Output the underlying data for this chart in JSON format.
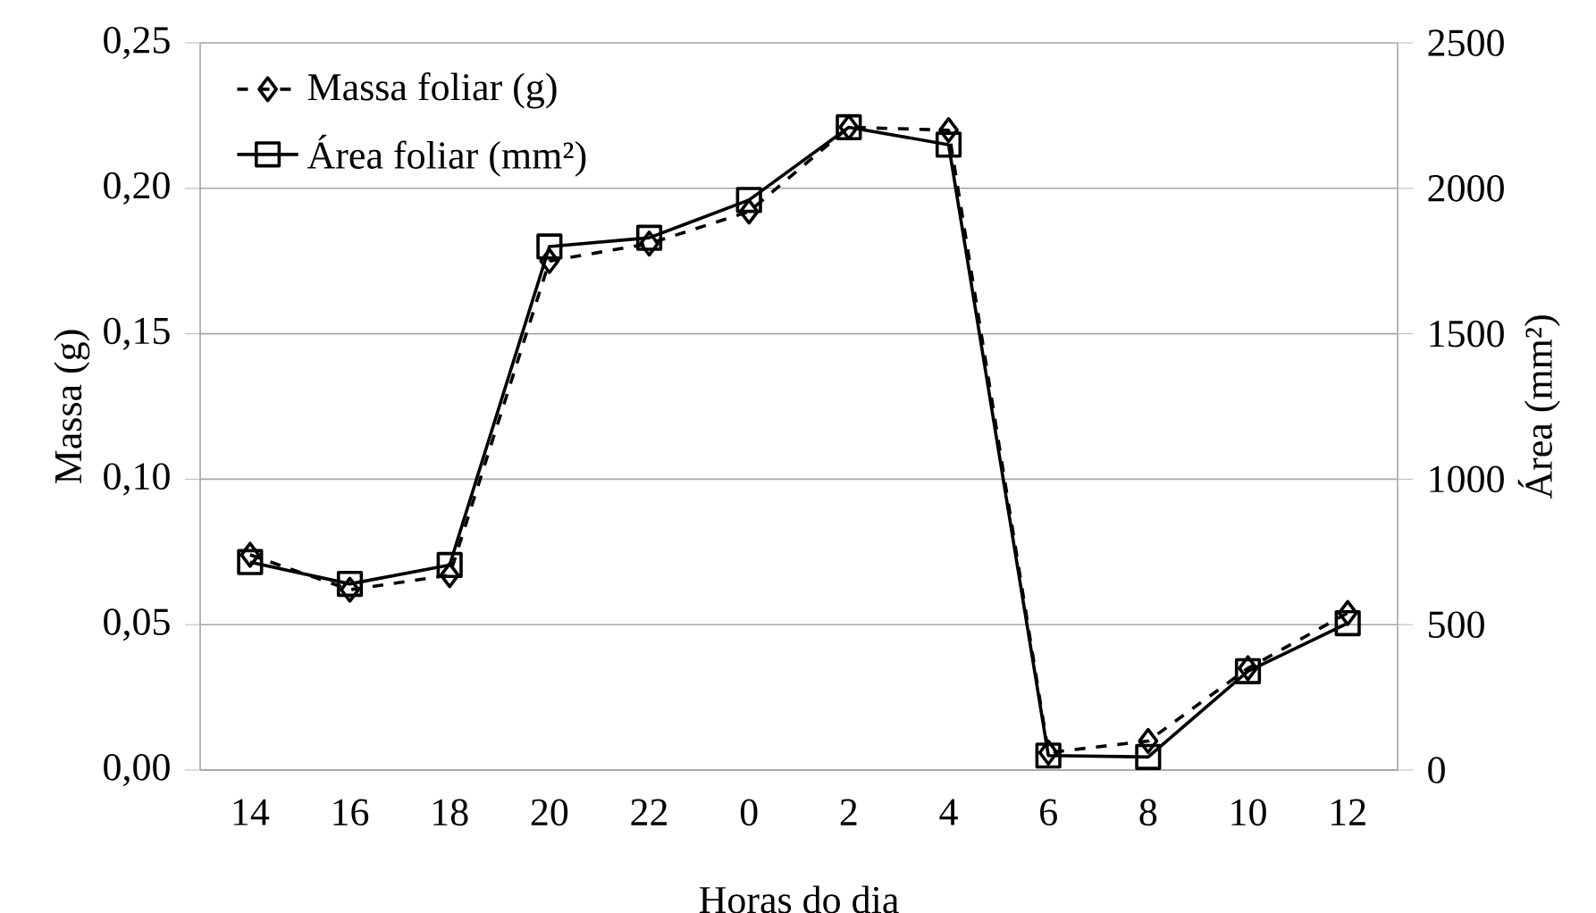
{
  "chart_data": {
    "type": "line",
    "xlabel": "Horas do dia",
    "ylabel": "Massa (g)",
    "y2label": "Área (mm²)",
    "categories": [
      "14",
      "16",
      "18",
      "20",
      "22",
      "0",
      "2",
      "4",
      "6",
      "8",
      "10",
      "12"
    ],
    "series": [
      {
        "name": "Massa foliar (g)",
        "color": "#000000",
        "marker": "diamond",
        "line_style": "dashed",
        "values": [
          0.074,
          0.062,
          0.067,
          0.175,
          0.181,
          0.192,
          0.221,
          0.22,
          0.006,
          0.01,
          0.035,
          0.054
        ]
      },
      {
        "name": "Área foliar (mm²)",
        "color": "#000000",
        "marker": "square",
        "line_style": "solid",
        "axis": "y2",
        "values": [
          715,
          640,
          705,
          1800,
          1830,
          1960,
          2210,
          2150,
          50,
          45,
          340,
          505
        ]
      }
    ],
    "ylim": [
      0,
      0.25
    ],
    "yticks": [
      {
        "value": 0,
        "label": "0,00"
      },
      {
        "value": 0.05,
        "label": "0,05"
      },
      {
        "value": 0.1,
        "label": "0,10"
      },
      {
        "value": 0.15,
        "label": "0,15"
      },
      {
        "value": 0.2,
        "label": "0,20"
      },
      {
        "value": 0.25,
        "label": "0,25"
      }
    ],
    "y2lim": [
      0,
      2500
    ],
    "y2ticks": [
      0,
      500,
      1000,
      1500,
      2000,
      2500
    ],
    "grid": "y",
    "legend": "top left"
  }
}
